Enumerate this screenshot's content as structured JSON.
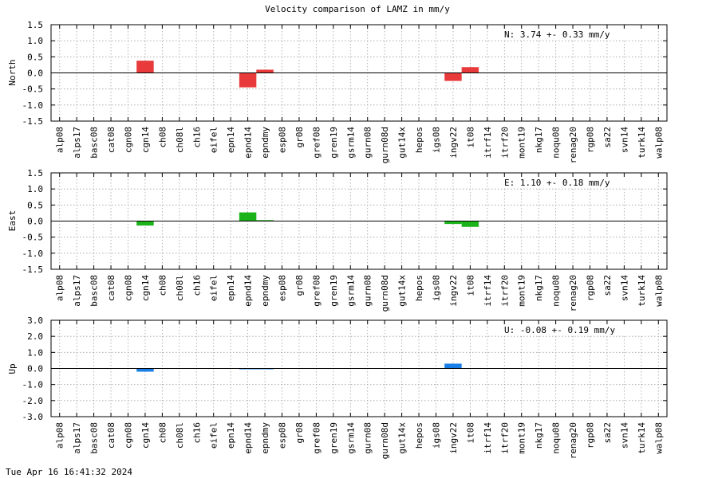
{
  "figure": {
    "title": "Velocity comparison of LAMZ in mm/y",
    "timestamp": "Tue Apr 16 16:41:32 2024"
  },
  "chart_data": [
    {
      "type": "bar",
      "ylabel": "North",
      "ylim": [
        -1.5,
        1.5
      ],
      "yticks": [
        "-1.5",
        "-1.0",
        "-0.5",
        "0.0",
        "0.5",
        "1.0",
        "1.5"
      ],
      "grid": true,
      "color": "#e83a3a",
      "annotation": "N:   3.74 +-  0.33 mm/y",
      "categories": [
        "alp08",
        "alps17",
        "basc08",
        "cat08",
        "cgn08",
        "cgn14",
        "ch08",
        "ch08l",
        "ch16",
        "eifel",
        "epn14",
        "epnd14",
        "epndmy",
        "esp08",
        "gr08",
        "gref08",
        "gren19",
        "gsrm14",
        "gurn08",
        "gurn08d",
        "gut14x",
        "hepos",
        "igs08",
        "ingv22",
        "it08",
        "itrf14",
        "itrf20",
        "mont19",
        "nkg17",
        "noqu08",
        "renag20",
        "rgp08",
        "sa22",
        "svn14",
        "turk14",
        "walp08"
      ],
      "values": [
        0,
        0,
        0,
        0,
        0,
        0.38,
        0,
        0,
        0,
        0,
        0,
        -0.45,
        0.1,
        0,
        0,
        0,
        0,
        0,
        0,
        0,
        0,
        0,
        0,
        -0.25,
        0.18,
        0,
        0,
        0,
        0,
        0,
        0,
        0,
        0,
        0,
        0,
        0
      ]
    },
    {
      "type": "bar",
      "ylabel": "East",
      "ylim": [
        -1.5,
        1.5
      ],
      "yticks": [
        "-1.5",
        "-1.0",
        "-0.5",
        "0.0",
        "0.5",
        "1.0",
        "1.5"
      ],
      "grid": true,
      "color": "#1ab31a",
      "annotation": "E:   1.10 +-  0.18 mm/y",
      "categories": [
        "alp08",
        "alps17",
        "basc08",
        "cat08",
        "cgn08",
        "cgn14",
        "ch08",
        "ch08l",
        "ch16",
        "eifel",
        "epn14",
        "epnd14",
        "epndmy",
        "esp08",
        "gr08",
        "gref08",
        "gren19",
        "gsrm14",
        "gurn08",
        "gurn08d",
        "gut14x",
        "hepos",
        "igs08",
        "ingv22",
        "it08",
        "itrf14",
        "itrf20",
        "mont19",
        "nkg17",
        "noqu08",
        "renag20",
        "rgp08",
        "sa22",
        "svn14",
        "turk14",
        "walp08"
      ],
      "values": [
        0,
        0,
        0,
        0,
        0,
        -0.14,
        0,
        0,
        0,
        0,
        0,
        0.27,
        0.03,
        0,
        0,
        0,
        0,
        0,
        0,
        0,
        0,
        0,
        0,
        -0.09,
        -0.18,
        0,
        0,
        0,
        0,
        0,
        0,
        0,
        0,
        0,
        0,
        0
      ]
    },
    {
      "type": "bar",
      "ylabel": "Up",
      "ylim": [
        -3.0,
        3.0
      ],
      "yticks": [
        "-3.0",
        "-2.0",
        "-1.0",
        "0.0",
        "1.0",
        "2.0",
        "3.0"
      ],
      "grid": true,
      "color": "#1a80e8",
      "annotation": "U:  -0.08 +-  0.19 mm/y",
      "categories": [
        "alp08",
        "alps17",
        "basc08",
        "cat08",
        "cgn08",
        "cgn14",
        "ch08",
        "ch08l",
        "ch16",
        "eifel",
        "epn14",
        "epnd14",
        "epndmy",
        "esp08",
        "gr08",
        "gref08",
        "gren19",
        "gsrm14",
        "gurn08",
        "gurn08d",
        "gut14x",
        "hepos",
        "igs08",
        "ingv22",
        "it08",
        "itrf14",
        "itrf20",
        "mont19",
        "nkg17",
        "noqu08",
        "renag20",
        "rgp08",
        "sa22",
        "svn14",
        "turk14",
        "walp08"
      ],
      "values": [
        0,
        0,
        0,
        0,
        0,
        -0.2,
        0,
        0,
        0,
        0,
        0,
        -0.05,
        -0.05,
        0,
        0,
        0,
        0,
        0,
        0,
        0,
        0,
        0,
        0,
        0.3,
        0,
        0,
        0,
        0,
        0,
        0,
        0,
        0,
        0,
        0,
        0,
        0
      ]
    }
  ]
}
